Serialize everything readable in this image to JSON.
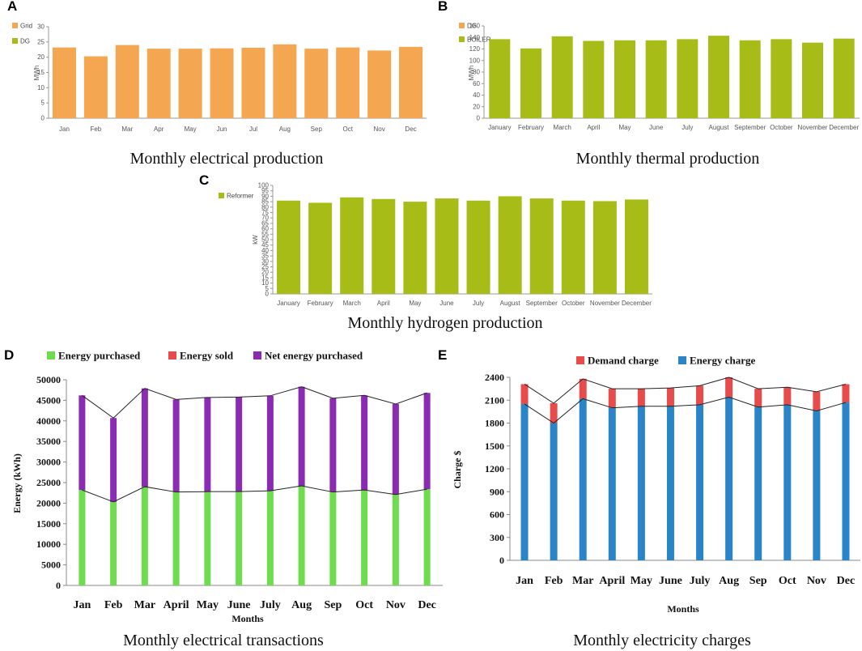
{
  "chart_data": [
    {
      "id": "A",
      "type": "bar",
      "letter": "A",
      "caption": "Monthly electrical production",
      "ylabel": "MWh",
      "ylim": [
        0,
        30
      ],
      "yticks": [
        0,
        5,
        10,
        15,
        20,
        25,
        30
      ],
      "categories": [
        "Jan",
        "Feb",
        "Mar",
        "Apr",
        "May",
        "Jun",
        "Jul",
        "Aug",
        "Sep",
        "Oct",
        "Nov",
        "Dec"
      ],
      "legend": [
        {
          "name": "Grid",
          "color": "#F5A650"
        },
        {
          "name": "DG",
          "color": "#A7BC17"
        }
      ],
      "series": [
        {
          "name": "Grid",
          "color": "#F5A650",
          "values": [
            23.2,
            20.3,
            24.0,
            22.8,
            22.8,
            22.9,
            23.1,
            24.2,
            22.8,
            23.2,
            22.2,
            23.4
          ]
        }
      ]
    },
    {
      "id": "B",
      "type": "bar",
      "letter": "B",
      "caption": "Monthly thermal production",
      "ylabel": "MWh",
      "ylim": [
        0,
        160
      ],
      "yticks": [
        0,
        20,
        40,
        60,
        80,
        100,
        120,
        140,
        160
      ],
      "categories": [
        "January",
        "February",
        "March",
        "April",
        "May",
        "June",
        "July",
        "August",
        "September",
        "October",
        "November",
        "December"
      ],
      "legend": [
        {
          "name": "DG",
          "color": "#F5A650"
        },
        {
          "name": "BOILER",
          "color": "#A7BC17"
        }
      ],
      "series": [
        {
          "name": "BOILER",
          "color": "#A7BC17",
          "values": [
            137,
            121,
            142,
            134,
            135,
            135,
            137,
            143,
            135,
            137,
            131,
            138
          ]
        }
      ]
    },
    {
      "id": "C",
      "type": "bar",
      "letter": "C",
      "caption": "Monthly hydrogen production",
      "ylabel": "kW",
      "ylim": [
        0,
        100
      ],
      "yticks": [
        0,
        5,
        10,
        15,
        20,
        25,
        30,
        35,
        40,
        45,
        50,
        55,
        60,
        65,
        70,
        75,
        80,
        85,
        90,
        95,
        100
      ],
      "categories": [
        "January",
        "February",
        "March",
        "April",
        "May",
        "June",
        "July",
        "August",
        "September",
        "October",
        "November",
        "December"
      ],
      "legend": [
        {
          "name": "Reformer",
          "color": "#A7BC17"
        }
      ],
      "series": [
        {
          "name": "Reformer",
          "color": "#A7BC17",
          "values": [
            86,
            84,
            89,
            87.5,
            85,
            88,
            86,
            90,
            88,
            86,
            85.5,
            87
          ]
        }
      ]
    },
    {
      "id": "D",
      "type": "bar",
      "letter": "D",
      "caption": "Monthly electrical transactions",
      "xlabel": "Months",
      "ylabel": "Energy (kWh)",
      "ylim": [
        0,
        50000
      ],
      "yticks": [
        0,
        5000,
        10000,
        15000,
        20000,
        25000,
        30000,
        35000,
        40000,
        45000,
        50000
      ],
      "categories": [
        "Jan",
        "Feb",
        "Mar",
        "April",
        "May",
        "June",
        "July",
        "Aug",
        "Sep",
        "Oct",
        "Nov",
        "Dec"
      ],
      "legend": [
        {
          "name": "Energy purchased",
          "color": "#6FDB4F"
        },
        {
          "name": "Energy sold",
          "color": "#E84B4B"
        },
        {
          "name": "Net energy purchased",
          "color": "#8B2BB3"
        }
      ],
      "series": [
        {
          "name": "Energy purchased",
          "color": "#6FDB4F",
          "values": [
            23200,
            20300,
            24000,
            22700,
            22800,
            22800,
            23000,
            24200,
            22700,
            23200,
            22100,
            23400
          ]
        },
        {
          "name": "Net energy purchased",
          "color": "#8B2BB3",
          "values": [
            23000,
            20400,
            23900,
            22500,
            22900,
            23000,
            23100,
            24100,
            22800,
            23000,
            22000,
            23400
          ]
        }
      ]
    },
    {
      "id": "E",
      "type": "bar",
      "letter": "E",
      "caption": "Monthly electricity charges",
      "xlabel": "Months",
      "ylabel": "Charge $",
      "ylim": [
        0,
        2400
      ],
      "yticks": [
        0,
        300,
        600,
        900,
        1200,
        1500,
        1800,
        2100,
        2400
      ],
      "categories": [
        "Jan",
        "Feb",
        "Mar",
        "April",
        "May",
        "June",
        "July",
        "Aug",
        "Sep",
        "Oct",
        "Nov",
        "Dec"
      ],
      "legend": [
        {
          "name": "Demand charge",
          "color": "#E84B4B"
        },
        {
          "name": "Energy charge",
          "color": "#2A85C8"
        }
      ],
      "series": [
        {
          "name": "Energy charge",
          "color": "#2A85C8",
          "values": [
            2050,
            1800,
            2120,
            2000,
            2020,
            2020,
            2040,
            2140,
            2010,
            2040,
            1960,
            2070
          ]
        },
        {
          "name": "Demand charge",
          "color": "#E84B4B",
          "values": [
            260,
            260,
            260,
            250,
            230,
            240,
            250,
            260,
            240,
            230,
            250,
            240
          ]
        }
      ]
    }
  ]
}
